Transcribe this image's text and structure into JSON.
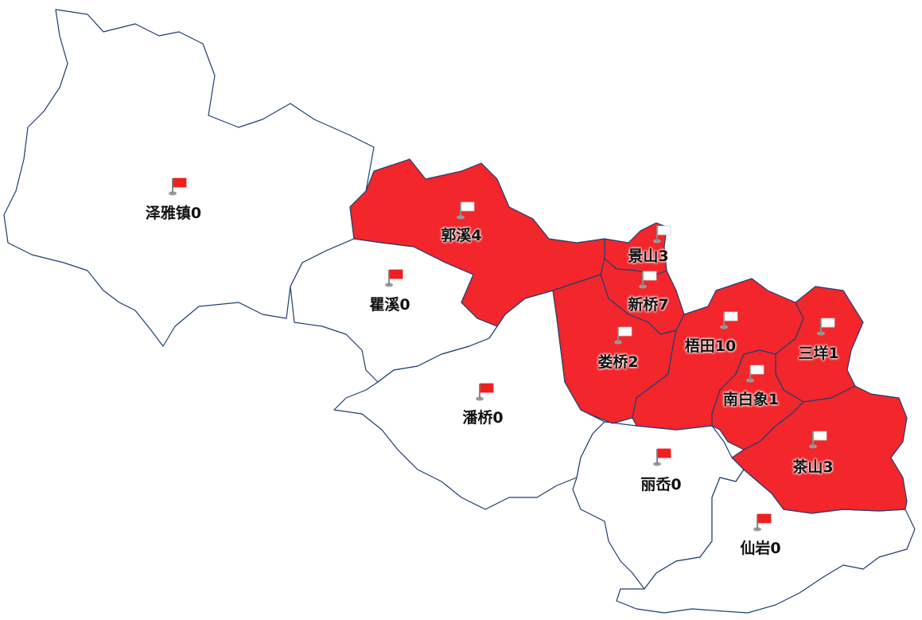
{
  "colors": {
    "active_fill": "#f2262b",
    "inactive_fill": "#ffffff",
    "border": "#1f3f73",
    "flag_active": "#ef2020",
    "flag_inactive": "#ffffff"
  },
  "regions": [
    {
      "id": "zeyazhen",
      "name": "泽雅镇",
      "count": 0,
      "label": "泽雅镇0",
      "icon": "red-flag-icon"
    },
    {
      "id": "guoxi",
      "name": "郭溪",
      "count": 4,
      "label": "郭溪4",
      "icon": "white-flag-icon"
    },
    {
      "id": "quxi",
      "name": "瞿溪",
      "count": 0,
      "label": "瞿溪0",
      "icon": "red-flag-icon"
    },
    {
      "id": "jingshan",
      "name": "景山",
      "count": 3,
      "label": "景山3",
      "icon": "white-flag-icon"
    },
    {
      "id": "xinqiao",
      "name": "新桥",
      "count": 7,
      "label": "新桥7",
      "icon": "white-flag-icon"
    },
    {
      "id": "louqiao",
      "name": "娄桥",
      "count": 2,
      "label": "娄桥2",
      "icon": "white-flag-icon"
    },
    {
      "id": "wutian",
      "name": "梧田",
      "count": 10,
      "label": "梧田10",
      "icon": "white-flag-icon"
    },
    {
      "id": "sanyang",
      "name": "三垟",
      "count": 1,
      "label": "三垟1",
      "icon": "white-flag-icon"
    },
    {
      "id": "panqiao",
      "name": "潘桥",
      "count": 0,
      "label": "潘桥0",
      "icon": "red-flag-icon"
    },
    {
      "id": "nanbaixiang",
      "name": "南白象",
      "count": 1,
      "label": "南白象1",
      "icon": "white-flag-icon"
    },
    {
      "id": "lixi",
      "name": "丽岙",
      "count": 0,
      "label": "丽岙0",
      "icon": "red-flag-icon"
    },
    {
      "id": "chashan",
      "name": "茶山",
      "count": 3,
      "label": "茶山3",
      "icon": "white-flag-icon"
    },
    {
      "id": "xianyan",
      "name": "仙岩",
      "count": 0,
      "label": "仙岩0",
      "icon": "red-flag-icon"
    }
  ]
}
